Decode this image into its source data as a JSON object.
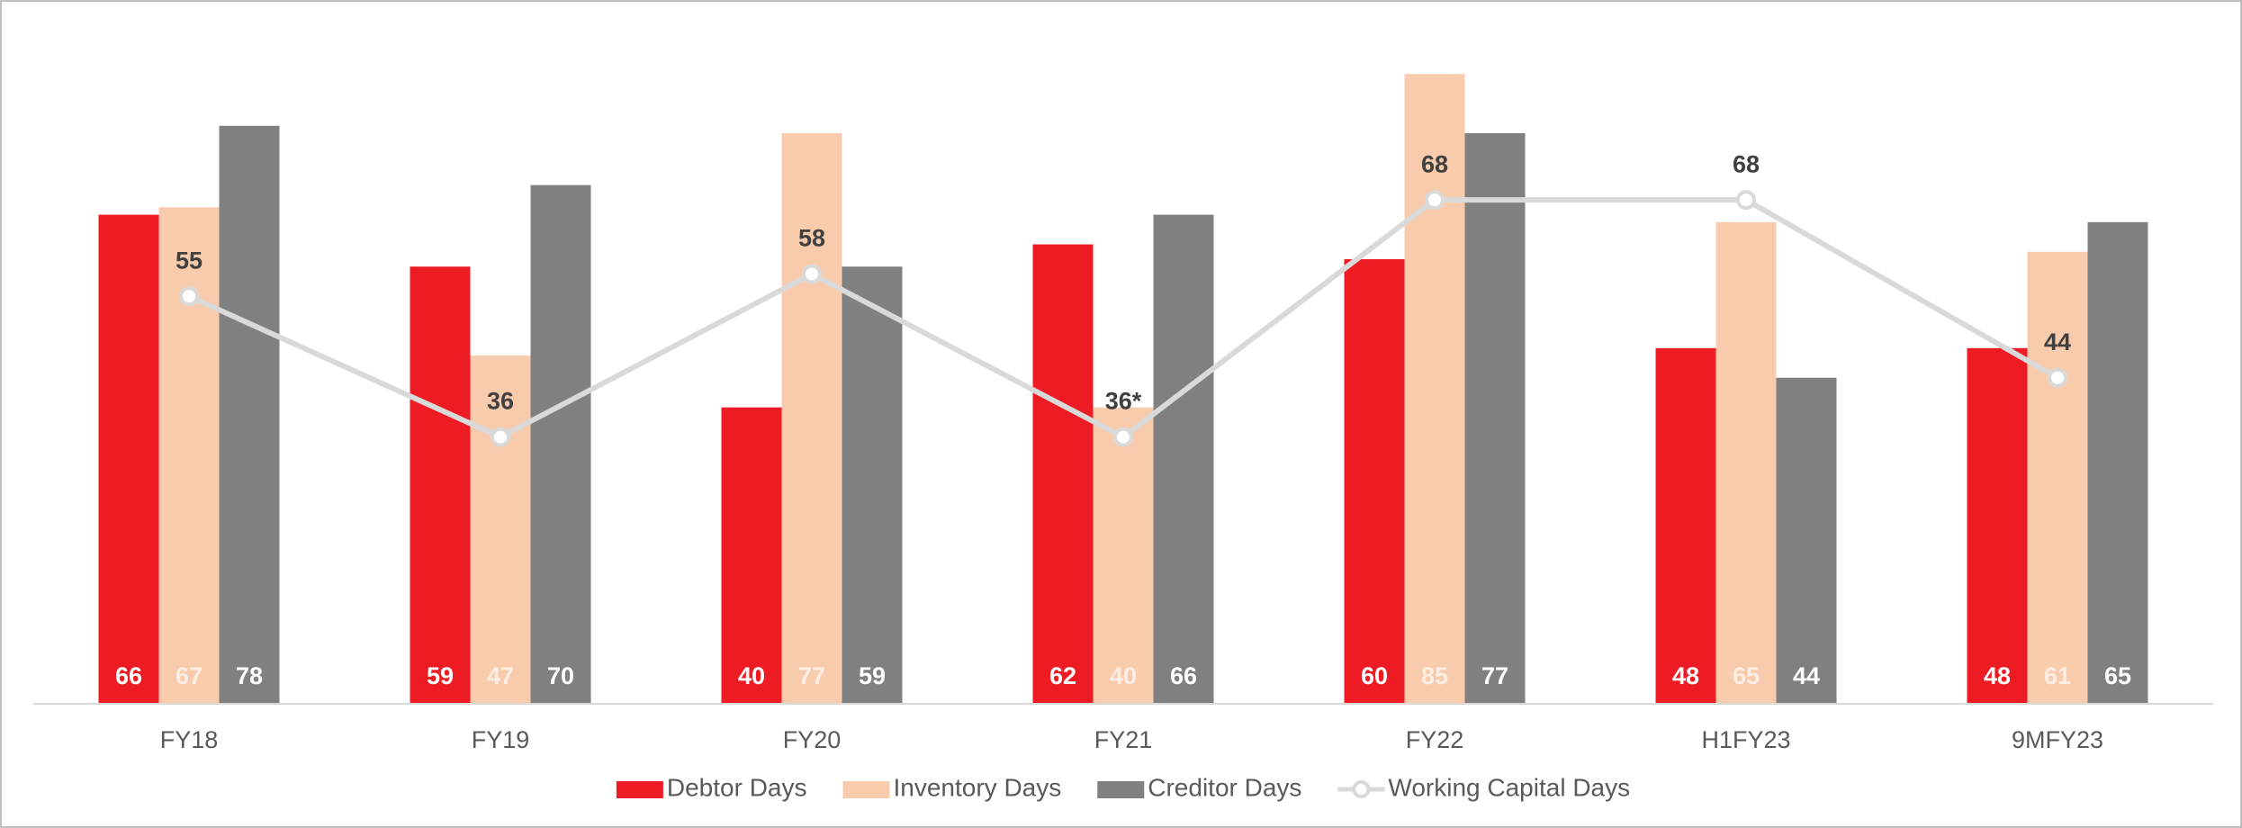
{
  "chart_data": {
    "type": "bar",
    "categories": [
      "FY18",
      "FY19",
      "FY20",
      "FY21",
      "FY22",
      "H1FY23",
      "9MFY23"
    ],
    "ylim": [
      0,
      90
    ],
    "series": [
      {
        "name": "Debtor Days",
        "color": "#ed1c24",
        "values": [
          66,
          59,
          40,
          62,
          60,
          48,
          48
        ]
      },
      {
        "name": "Inventory Days",
        "color": "#f8cbad",
        "values": [
          67,
          47,
          77,
          40,
          85,
          65,
          61
        ]
      },
      {
        "name": "Creditor Days",
        "color": "#808080",
        "values": [
          78,
          70,
          59,
          66,
          77,
          44,
          65
        ]
      },
      {
        "name": "Working Capital Days",
        "type": "line",
        "color": "#d9d9d9",
        "values": [
          55,
          36,
          58,
          36,
          68,
          68,
          44
        ],
        "value_labels": [
          "55",
          "36",
          "58",
          "36*",
          "68",
          "68",
          "44"
        ]
      }
    ]
  }
}
